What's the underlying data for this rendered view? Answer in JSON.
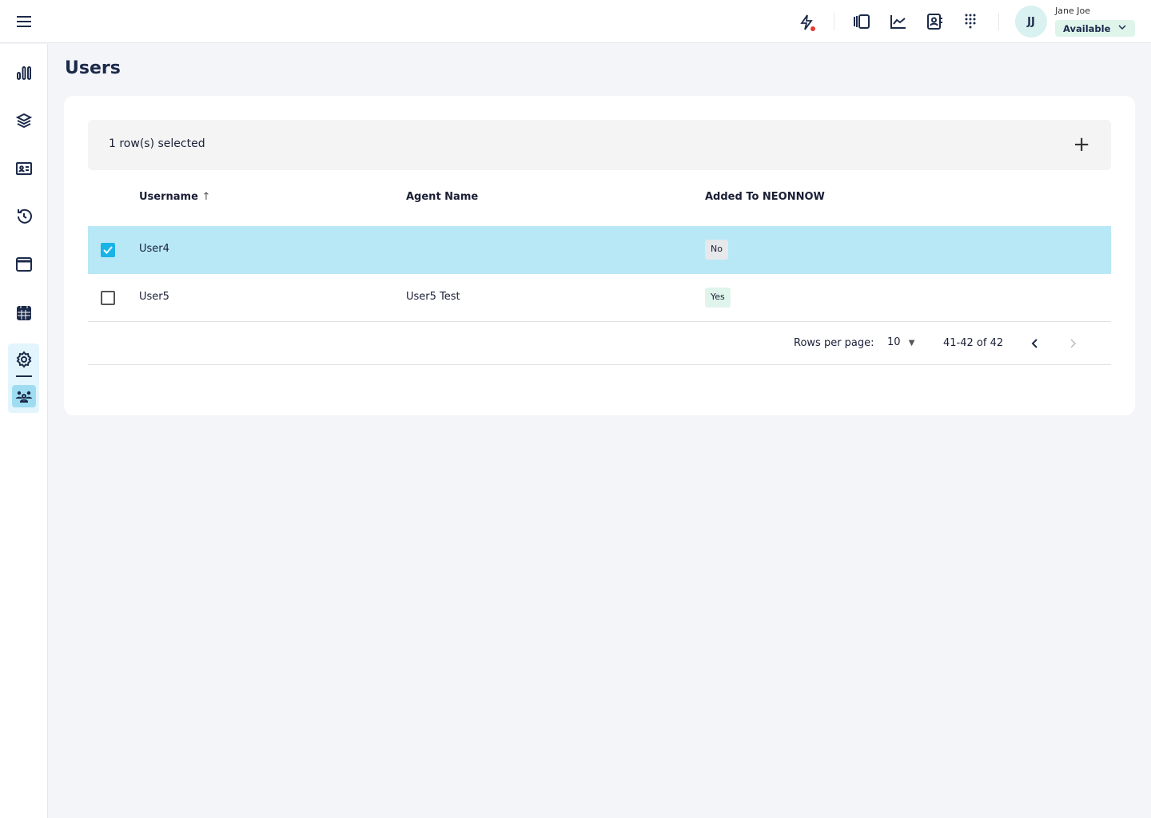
{
  "header": {
    "user_name": "Jane Joe",
    "initials": "JJ",
    "status": "Available",
    "icons": [
      "lightning-icon",
      "panel-icon",
      "chart-line-icon",
      "contact-book-icon",
      "dialpad-icon"
    ],
    "notification_color": "#e53935"
  },
  "sidebar": {
    "items": [
      "bar-chart-icon",
      "layers-icon",
      "id-card-icon",
      "history-icon",
      "window-icon",
      "calendar-icon",
      "settings-icon",
      "users-icon"
    ]
  },
  "page": {
    "title": "Users"
  },
  "table": {
    "selection_text": "1 row(s) selected",
    "columns": [
      "Username",
      "Agent Name",
      "Added To NEONNOW"
    ],
    "rows": [
      {
        "selected": true,
        "username": "User4",
        "agent_name": "",
        "added": "No"
      },
      {
        "selected": false,
        "username": "User5",
        "agent_name": "User5 Test",
        "added": "Yes"
      }
    ],
    "rows_per_page_label": "Rows per page:",
    "rows_per_page": "10",
    "range": "41-42 of 42"
  },
  "colors": {
    "selected_row": "#b8e8f6",
    "accent": "#19b3e6",
    "badge_no": "#e6e8eb",
    "badge_yes": "#dff5ec"
  }
}
